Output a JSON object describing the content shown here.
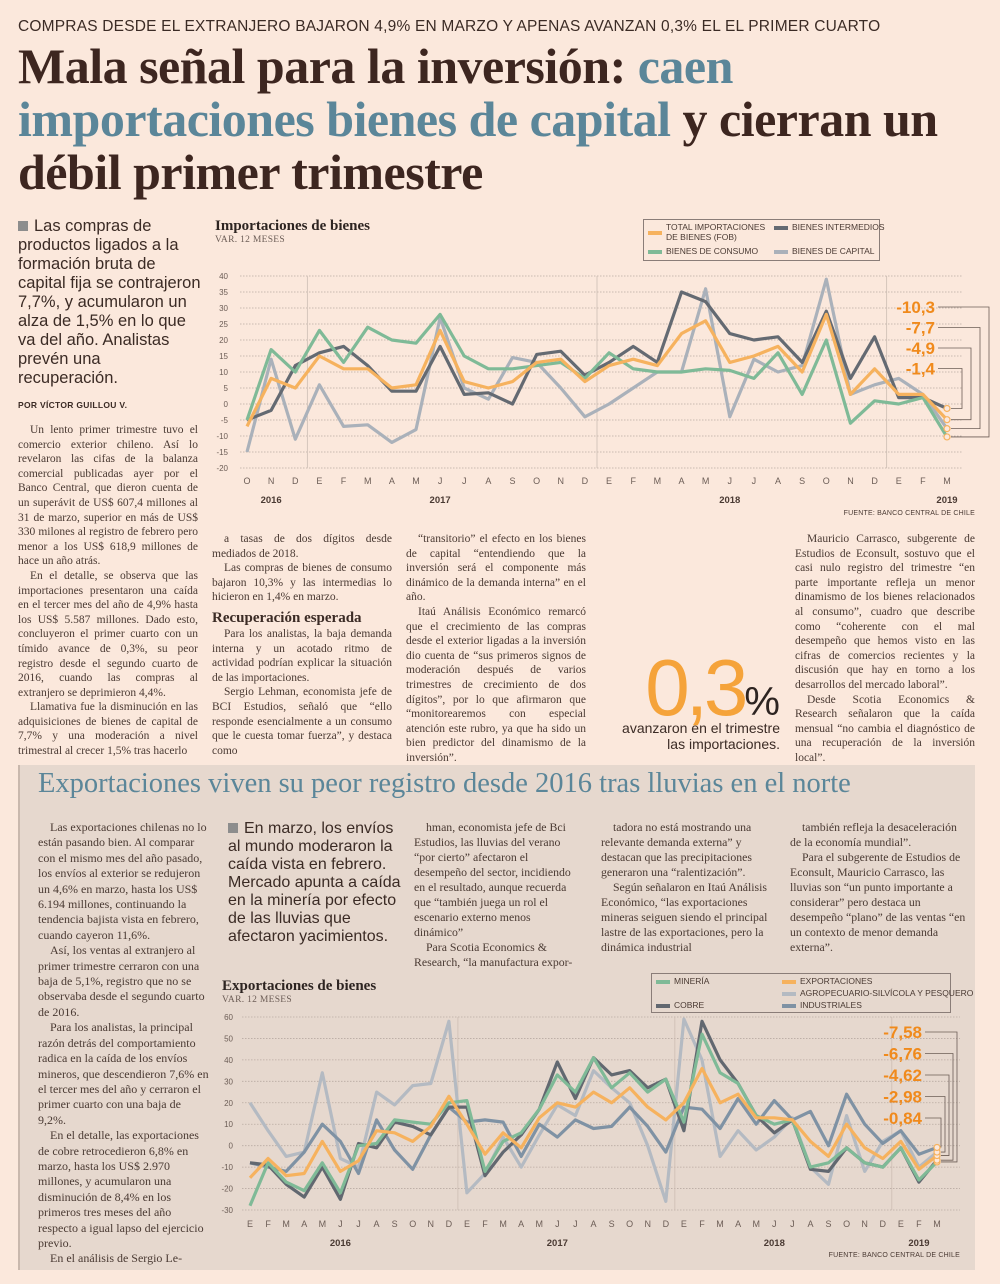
{
  "kicker": "COMPRAS DESDE EL EXTRANJERO BAJARON 4,9% EN MARZO Y APENAS AVANZAN 0,3% EL EL PRIMER CUARTO",
  "headline": {
    "part1": "Mala señal para la inversión: ",
    "highlight": "caen importaciones bienes de capital",
    "part2": " y cierran un débil primer trimestre"
  },
  "lede": "Las compras de productos ligados a la formación bruta de capital fija se contrajeron 7,7%, y acumularon un alza de 1,5% en lo que va del año. Analistas prevén una recuperación.",
  "byline": "POR VÍCTOR GUILLOU V.",
  "article": {
    "col1": [
      "Un lento primer trimestre tuvo el comercio exterior chileno. Así lo revelaron las cifas de la balanza comercial publicadas ayer por el Banco Central, que dieron cuenta de un superávit de US$ 607,4 millones al 31 de marzo, superior en más de US$ 330 milones al registro de febrero pero menor a los US$ 618,9 millones de hace un año atrás.",
      "En el detalle, se observa que las importaciones presentaron una caída en el tercer mes del año de 4,9% hasta los US$ 5.587 millones. Dado esto, concluyeron el primer cuarto con un tímido avance de 0,3%, su peor registro desde el segundo cuarto de 2016, cuando las compras al extranjero se deprimieron 4,4%.",
      "Llamativa fue la disminución en las adquisiciones de bienes de capital de 7,7% y una moderación a nivel trimestral al crecer 1,5% tras hacerlo"
    ],
    "col2a": [
      "a tasas de dos dígitos desde mediados de 2018.",
      "Las compras de bienes de consumo bajaron 10,3% y las intermedias lo hicieron en 1,4% en marzo."
    ],
    "subhead": "Recuperación esperada",
    "col2b": [
      "Para los analistas, la baja demanda interna y un acotado ritmo de actividad podrían explicar la situación de las importaciones.",
      "Sergio Lehman, economista jefe de BCI Estudios, señaló que “ello responde esencialmente a un consumo que le cuesta tomar fuerza”, y destaca como"
    ],
    "col3": [
      "“transitorio” el efecto en los bienes de capital “entendiendo que la inversión será el componente más dinámico de la demanda interna” en el año.",
      "Itaú Análisis Económico remarcó que el crecimiento de las compras desde el exterior ligadas a la inversión dio cuenta de “sus primeros signos de moderación después de varios trimestres de crecimiento de dos dígitos”, por lo que afirmaron que “monitorearemos con especial atención este rubro, ya que ha sido un bien predictor del dinamismo de la inversión”."
    ],
    "col5": [
      "Mauricio Carrasco, subgerente de Estudios de Econsult, sostuvo que el casi nulo registro del trimestre “en parte importante refleja un menor dinamismo de los bienes relacionados al consumo”, cuadro que describe como “coherente con el mal desempeño que hemos visto en las cifras de comercios recientes y la discusión que hay en torno a los desarrollos del mercado laboral”.",
      "Desde Scotia Economics & Research señalaron que la caída mensual “no cambia el diagnóstico de una recuperación de la inversión local”."
    ]
  },
  "callout": {
    "number": "0,3",
    "unit": "%",
    "caption_line1": "avanzaron en el trimestre",
    "caption_line2": "las importaciones."
  },
  "exports_section": {
    "title": "Exportaciones viven su peor registro desde 2016 tras lluvias en el norte",
    "lede": "En marzo, los envíos al mundo moderaron la caída vista en febrero. Mercado apunta a caída en la minería por efecto de las lluvias que afectaron yacimientos.",
    "col1": [
      "Las exportaciones chilenas no lo están pasando bien. Al comparar con el mismo mes del año pasado, los envíos al exterior se redujeron un 4,6% en marzo, hasta los US$ 6.194 millones, continuando la tendencia bajista vista en febrero, cuando cayeron 11,6%.",
      "Así, los ventas al extranjero al primer trimestre cerraron con una baja de 5,1%, registro que no se observaba desde el segundo cuarto de 2016.",
      "Para los analistas, la principal razón detrás del comportamiento radica en la caída de los envíos mineros, que descendieron 7,6% en el tercer mes del año y cerraron el primer cuarto con una baja de 9,2%.",
      "En el detalle, las exportaciones de cobre retrocedieron 6,8% en marzo, hasta los US$ 2.970 millones, y acumularon una disminución de 8,4% en los primeros tres meses del año respecto a igual lapso del ejercicio previo.",
      "En el análisis de Sergio Le-"
    ],
    "col3": [
      "hman, economista jefe de Bci Estudios, las lluvias del verano “por cierto” afectaron el desempeño del sector, incidiendo en el resultado, aunque recuerda que “también juega un rol el escenario externo menos dinámico”",
      "Para Scotia Economics & Research, “la manufactura expor-"
    ],
    "col4": [
      "tadora no está mostrando una relevante demanda externa” y destacan que las precipitaciones generaron una “ralentización”.",
      "Según señalaron en Itaú Análisis Económico, “las exportaciones mineras seiguen siendo el principal lastre de las exportaciones, pero la dinámica industrial"
    ],
    "col5": [
      "también refleja la desaceleración de la economía mundial”.",
      "Para el subgerente de Estudios de Econsult, Mauricio Carrasco, las lluvias son “un punto importante a considerar” pero destaca un desempeño “plano” de las ventas   “en un contexto de menor demanda externa”."
    ]
  },
  "chart_data": [
    {
      "type": "line",
      "title": "Importaciones de bienes",
      "subtitle": "VAR. 12 MESES",
      "source": "FUENTE: BANCO CENTRAL DE CHILE",
      "ylim": [
        -20,
        40
      ],
      "yticks": [
        40,
        35,
        30,
        25,
        20,
        15,
        10,
        5,
        0,
        -5,
        -10,
        -15,
        -20
      ],
      "grid": true,
      "legend_placement": "top-right",
      "x": [
        "O",
        "N",
        "D",
        "E",
        "F",
        "M",
        "A",
        "M",
        "J",
        "J",
        "A",
        "S",
        "O",
        "N",
        "D",
        "E",
        "F",
        "M",
        "A",
        "M",
        "J",
        "J",
        "A",
        "S",
        "O",
        "N",
        "D",
        "E",
        "F",
        "M"
      ],
      "years": [
        {
          "label": "2016",
          "at": 1
        },
        {
          "label": "2017",
          "at": 8
        },
        {
          "label": "2018",
          "at": 20
        },
        {
          "label": "2019",
          "at": 29
        }
      ],
      "series": [
        {
          "name": "BIENES DE CAPITAL",
          "color": "#aab1ba",
          "values": [
            -15,
            14,
            -11,
            6,
            -7,
            -6.5,
            -12,
            -8,
            27,
            5,
            1.5,
            14.5,
            13,
            5,
            -4,
            0,
            5,
            10,
            10,
            36,
            -4,
            14,
            10,
            12,
            39,
            3,
            6,
            8,
            3,
            -7.7
          ]
        },
        {
          "name": "BIENES INTERMEDIOS",
          "color": "#646a72",
          "values": [
            -5,
            -2,
            12,
            16,
            18,
            12,
            4,
            4,
            18,
            3,
            3.5,
            0,
            15.5,
            16.5,
            9,
            13,
            18,
            13,
            35,
            32,
            22,
            20,
            21,
            13,
            29,
            8,
            21,
            2,
            2,
            -1.4
          ]
        },
        {
          "name": "BIENES DE CONSUMO",
          "color": "#7fba97",
          "values": [
            -5,
            17,
            10,
            23,
            13,
            24,
            20,
            19,
            28,
            15,
            11,
            11,
            12,
            13,
            8,
            16,
            11,
            10,
            10,
            11,
            10.5,
            8,
            16,
            3,
            20,
            -6,
            1,
            0,
            2,
            -10.3
          ]
        },
        {
          "name": "TOTAL IMPORTACIONES DE BIENES (FOB)",
          "color": "#f6b25e",
          "values": [
            -7,
            8,
            5,
            15,
            11,
            11,
            5,
            6,
            23,
            7,
            5,
            7,
            13,
            14,
            7,
            12,
            14,
            12,
            22,
            26,
            13,
            15,
            18,
            10,
            28,
            3,
            11,
            3,
            3,
            -4.9
          ]
        }
      ],
      "legend_order": [
        "TOTAL IMPORTACIONES DE BIENES (FOB)",
        "BIENES INTERMEDIOS",
        "BIENES DE CONSUMO",
        "BIENES DE CAPITAL"
      ],
      "end_labels": [
        "-10,3",
        "-7,7",
        "-4,9",
        "-1,4"
      ],
      "label_color": "#f08a1c"
    },
    {
      "type": "line",
      "title": "Exportaciones de bienes",
      "subtitle": "VAR. 12 MESES",
      "source": "FUENTE: BANCO CENTRAL DE CHILE",
      "ylim": [
        -30,
        60
      ],
      "yticks": [
        60,
        50,
        40,
        30,
        20,
        10,
        0,
        -10,
        -20,
        -30
      ],
      "grid": true,
      "legend_placement": "top-right",
      "x": [
        "E",
        "F",
        "M",
        "A",
        "M",
        "J",
        "J",
        "A",
        "S",
        "O",
        "N",
        "D",
        "E",
        "F",
        "M",
        "A",
        "M",
        "J",
        "J",
        "A",
        "S",
        "O",
        "N",
        "D",
        "E",
        "F",
        "M",
        "A",
        "M",
        "J",
        "J",
        "A",
        "S",
        "O",
        "N",
        "D",
        "E",
        "F",
        "M"
      ],
      "years": [
        {
          "label": "2016",
          "at": 5
        },
        {
          "label": "2017",
          "at": 17
        },
        {
          "label": "2018",
          "at": 29
        },
        {
          "label": "2019",
          "at": 37
        }
      ],
      "series": [
        {
          "name": "AGROPECUARIO-SILVÍCOLA Y PESQUERO",
          "color": "#b4bac2",
          "values": [
            20,
            7,
            -5,
            -3,
            34,
            -6,
            -10,
            25,
            19,
            28,
            29,
            58,
            -22,
            -13,
            4,
            -10,
            5,
            19,
            14,
            35,
            27,
            20,
            0,
            -26,
            59,
            40,
            -5,
            7,
            -2,
            4,
            13,
            -10,
            -18,
            14,
            -12,
            2,
            7,
            -10,
            -2.98
          ]
        },
        {
          "name": "INDUSTRIALES",
          "color": "#7f92a4",
          "values": [
            -8,
            -10,
            -12,
            -3,
            10,
            2,
            -13,
            12,
            -2,
            -11,
            5,
            18,
            11,
            12,
            11,
            -5,
            10,
            4,
            12,
            8,
            9,
            18,
            9,
            -3,
            18,
            17,
            8,
            22,
            10,
            21,
            12,
            16,
            0,
            24,
            10,
            1,
            7,
            -4,
            -0.84
          ]
        },
        {
          "name": "COBRE",
          "color": "#626870",
          "values": [
            -8,
            -9,
            -18,
            -24,
            -10,
            -25,
            1,
            -1,
            11,
            9,
            5,
            18,
            18,
            -14,
            -3,
            5,
            17,
            39,
            22,
            41,
            33,
            35,
            27,
            31,
            7,
            58,
            40,
            29,
            14,
            6,
            12,
            -11,
            -12,
            -1,
            -8,
            -10,
            -1,
            -17,
            -6.76
          ]
        },
        {
          "name": "MINERÍA",
          "color": "#7fba97",
          "values": [
            -28,
            -8,
            -17,
            -21,
            -8,
            -22,
            0,
            1,
            12,
            11,
            10,
            20,
            21,
            -12,
            2,
            6,
            17,
            33,
            25,
            41,
            27,
            34,
            25,
            31,
            11,
            52,
            34,
            29,
            14,
            10,
            12,
            -10,
            -8,
            -1,
            -8,
            -10,
            -1,
            -16,
            -7.58
          ]
        },
        {
          "name": "EXPORTACIONES",
          "color": "#f6b25e",
          "values": [
            -15,
            -6,
            -14,
            -13,
            2,
            -12,
            -7,
            7,
            6,
            2,
            9,
            23,
            10,
            -4,
            6,
            -1,
            13,
            20,
            18,
            25,
            20,
            27,
            18,
            12,
            20,
            36,
            20,
            24,
            13,
            13,
            12,
            2,
            -5,
            10,
            -1,
            -6,
            2,
            -11,
            -4.62
          ]
        }
      ],
      "legend_order": [
        "MINERÍA",
        "EXPORTACIONES",
        "AGROPECUARIO-SILVÍCOLA Y PESQUERO",
        "COBRE",
        "INDUSTRIALES"
      ],
      "end_labels": [
        "-7,58",
        "-6,76",
        "-4,62",
        "-2,98",
        "-0,84"
      ],
      "label_color": "#f08a1c"
    }
  ],
  "colors": {
    "page_bg": "#fbe8dc",
    "exports_bg": "#e6d8ce",
    "headline_accent": "#5b8699",
    "callout_orange": "#f5a33a"
  }
}
